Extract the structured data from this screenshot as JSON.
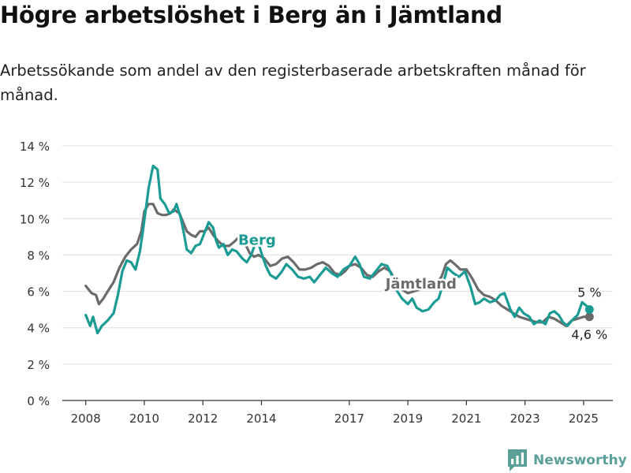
{
  "title": "Högre arbetslöshet i Berg än i Jämtland",
  "subtitle": "Arbetssökande som andel av den registerbaserade arbetskraften månad för månad.",
  "brand": {
    "name": "Newsworthy",
    "icon": "newsworthy-logo-icon"
  },
  "colors": {
    "berg": "#1a9b93",
    "jamtland": "#6b6b6b",
    "grid": "#dddddd",
    "axis": "#333333"
  },
  "chart_data": {
    "type": "line",
    "y_ticks": [
      "0 %",
      "2 %",
      "4 %",
      "6 %",
      "8 %",
      "10 %",
      "12 %",
      "14 %"
    ],
    "x_ticks": [
      "2008",
      "2010",
      "2012",
      "2014",
      "2017",
      "2019",
      "2021",
      "2023",
      "2025"
    ],
    "x_tick_values": [
      2008,
      2010,
      2012,
      2014,
      2017,
      2019,
      2021,
      2023,
      2025
    ],
    "xlim": [
      2007.2,
      2026.0
    ],
    "ylim": [
      0,
      14
    ],
    "grid": true,
    "series": [
      {
        "name": "Jämtland",
        "color": "#6b6b6b",
        "end_label": "4,6 %",
        "points": [
          [
            2008.0,
            6.3
          ],
          [
            2008.2,
            5.9
          ],
          [
            2008.35,
            5.8
          ],
          [
            2008.45,
            5.3
          ],
          [
            2008.6,
            5.6
          ],
          [
            2008.75,
            6.0
          ],
          [
            2008.95,
            6.5
          ],
          [
            2009.15,
            7.3
          ],
          [
            2009.35,
            7.9
          ],
          [
            2009.55,
            8.3
          ],
          [
            2009.75,
            8.6
          ],
          [
            2009.9,
            9.3
          ],
          [
            2010.0,
            10.4
          ],
          [
            2010.15,
            10.8
          ],
          [
            2010.3,
            10.8
          ],
          [
            2010.45,
            10.3
          ],
          [
            2010.6,
            10.2
          ],
          [
            2010.75,
            10.2
          ],
          [
            2010.9,
            10.3
          ],
          [
            2011.0,
            10.5
          ],
          [
            2011.2,
            10.3
          ],
          [
            2011.35,
            9.7
          ],
          [
            2011.45,
            9.3
          ],
          [
            2011.6,
            9.1
          ],
          [
            2011.75,
            9.0
          ],
          [
            2011.9,
            9.3
          ],
          [
            2012.05,
            9.3
          ],
          [
            2012.2,
            9.5
          ],
          [
            2012.35,
            9.1
          ],
          [
            2012.5,
            8.8
          ],
          [
            2012.7,
            8.5
          ],
          [
            2012.9,
            8.5
          ],
          [
            2013.05,
            8.7
          ],
          [
            2013.25,
            9.0
          ],
          [
            2013.45,
            8.6
          ],
          [
            2013.6,
            8.1
          ],
          [
            2013.75,
            7.9
          ],
          [
            2013.9,
            8.0
          ],
          [
            2014.1,
            7.8
          ],
          [
            2014.3,
            7.4
          ],
          [
            2014.5,
            7.5
          ],
          [
            2014.7,
            7.8
          ],
          [
            2014.9,
            7.9
          ],
          [
            2015.1,
            7.6
          ],
          [
            2015.3,
            7.2
          ],
          [
            2015.5,
            7.2
          ],
          [
            2015.7,
            7.3
          ],
          [
            2015.9,
            7.5
          ],
          [
            2016.1,
            7.6
          ],
          [
            2016.3,
            7.4
          ],
          [
            2016.5,
            7.0
          ],
          [
            2016.7,
            6.9
          ],
          [
            2016.85,
            7.1
          ],
          [
            2017.0,
            7.4
          ],
          [
            2017.2,
            7.5
          ],
          [
            2017.4,
            7.3
          ],
          [
            2017.6,
            6.9
          ],
          [
            2017.8,
            6.8
          ],
          [
            2018.0,
            7.1
          ],
          [
            2018.2,
            7.3
          ],
          [
            2018.4,
            7.1
          ],
          [
            2018.6,
            6.5
          ],
          [
            2018.8,
            6.1
          ],
          [
            2019.0,
            5.9
          ],
          [
            2019.2,
            6.0
          ],
          [
            2019.4,
            6.1
          ],
          [
            2019.6,
            6.2
          ],
          [
            2019.8,
            6.3
          ],
          [
            2020.0,
            6.5
          ],
          [
            2020.15,
            6.8
          ],
          [
            2020.3,
            7.5
          ],
          [
            2020.45,
            7.7
          ],
          [
            2020.6,
            7.5
          ],
          [
            2020.8,
            7.2
          ],
          [
            2021.0,
            7.2
          ],
          [
            2021.2,
            6.7
          ],
          [
            2021.4,
            6.1
          ],
          [
            2021.6,
            5.8
          ],
          [
            2021.8,
            5.7
          ],
          [
            2022.0,
            5.5
          ],
          [
            2022.2,
            5.2
          ],
          [
            2022.4,
            5.0
          ],
          [
            2022.6,
            4.8
          ],
          [
            2022.8,
            4.6
          ],
          [
            2023.0,
            4.5
          ],
          [
            2023.2,
            4.4
          ],
          [
            2023.4,
            4.3
          ],
          [
            2023.6,
            4.3
          ],
          [
            2023.8,
            4.6
          ],
          [
            2024.0,
            4.5
          ],
          [
            2024.2,
            4.3
          ],
          [
            2024.4,
            4.1
          ],
          [
            2024.6,
            4.4
          ],
          [
            2024.8,
            4.5
          ],
          [
            2025.0,
            4.6
          ],
          [
            2025.2,
            4.6
          ]
        ]
      },
      {
        "name": "Berg",
        "color": "#1a9b93",
        "end_label": "5 %",
        "points": [
          [
            2008.0,
            4.7
          ],
          [
            2008.15,
            4.1
          ],
          [
            2008.25,
            4.6
          ],
          [
            2008.4,
            3.7
          ],
          [
            2008.55,
            4.1
          ],
          [
            2008.75,
            4.4
          ],
          [
            2008.95,
            4.8
          ],
          [
            2009.1,
            5.8
          ],
          [
            2009.25,
            7.1
          ],
          [
            2009.4,
            7.7
          ],
          [
            2009.55,
            7.6
          ],
          [
            2009.7,
            7.2
          ],
          [
            2009.85,
            8.2
          ],
          [
            2009.95,
            9.3
          ],
          [
            2010.05,
            10.5
          ],
          [
            2010.15,
            11.7
          ],
          [
            2010.3,
            12.9
          ],
          [
            2010.45,
            12.7
          ],
          [
            2010.55,
            11.1
          ],
          [
            2010.7,
            10.8
          ],
          [
            2010.85,
            10.3
          ],
          [
            2011.0,
            10.4
          ],
          [
            2011.1,
            10.8
          ],
          [
            2011.25,
            10.0
          ],
          [
            2011.35,
            9.2
          ],
          [
            2011.45,
            8.3
          ],
          [
            2011.6,
            8.1
          ],
          [
            2011.75,
            8.5
          ],
          [
            2011.9,
            8.6
          ],
          [
            2012.05,
            9.2
          ],
          [
            2012.2,
            9.8
          ],
          [
            2012.35,
            9.5
          ],
          [
            2012.45,
            8.8
          ],
          [
            2012.55,
            8.4
          ],
          [
            2012.7,
            8.6
          ],
          [
            2012.85,
            8.0
          ],
          [
            2013.0,
            8.3
          ],
          [
            2013.15,
            8.2
          ],
          [
            2013.35,
            7.8
          ],
          [
            2013.5,
            7.6
          ],
          [
            2013.65,
            8.0
          ],
          [
            2013.85,
            8.9
          ],
          [
            2014.0,
            8.1
          ],
          [
            2014.15,
            7.4
          ],
          [
            2014.3,
            6.9
          ],
          [
            2014.5,
            6.7
          ],
          [
            2014.7,
            7.1
          ],
          [
            2014.85,
            7.5
          ],
          [
            2015.05,
            7.2
          ],
          [
            2015.25,
            6.8
          ],
          [
            2015.45,
            6.7
          ],
          [
            2015.65,
            6.8
          ],
          [
            2015.8,
            6.5
          ],
          [
            2016.0,
            6.9
          ],
          [
            2016.2,
            7.3
          ],
          [
            2016.4,
            7.0
          ],
          [
            2016.6,
            6.8
          ],
          [
            2016.8,
            7.2
          ],
          [
            2017.0,
            7.4
          ],
          [
            2017.2,
            7.9
          ],
          [
            2017.35,
            7.5
          ],
          [
            2017.5,
            6.8
          ],
          [
            2017.7,
            6.7
          ],
          [
            2017.9,
            7.1
          ],
          [
            2018.1,
            7.5
          ],
          [
            2018.3,
            7.4
          ],
          [
            2018.45,
            6.9
          ],
          [
            2018.6,
            6.1
          ],
          [
            2018.8,
            5.6
          ],
          [
            2019.0,
            5.3
          ],
          [
            2019.15,
            5.6
          ],
          [
            2019.3,
            5.1
          ],
          [
            2019.5,
            4.9
          ],
          [
            2019.7,
            5.0
          ],
          [
            2019.9,
            5.4
          ],
          [
            2020.05,
            5.6
          ],
          [
            2020.2,
            6.4
          ],
          [
            2020.35,
            7.3
          ],
          [
            2020.55,
            7.0
          ],
          [
            2020.75,
            6.8
          ],
          [
            2020.95,
            7.1
          ],
          [
            2021.15,
            6.2
          ],
          [
            2021.3,
            5.3
          ],
          [
            2021.45,
            5.4
          ],
          [
            2021.6,
            5.6
          ],
          [
            2021.8,
            5.4
          ],
          [
            2022.0,
            5.5
          ],
          [
            2022.15,
            5.8
          ],
          [
            2022.3,
            5.9
          ],
          [
            2022.5,
            5.0
          ],
          [
            2022.65,
            4.6
          ],
          [
            2022.8,
            5.1
          ],
          [
            2022.95,
            4.8
          ],
          [
            2023.15,
            4.6
          ],
          [
            2023.3,
            4.2
          ],
          [
            2023.5,
            4.4
          ],
          [
            2023.7,
            4.2
          ],
          [
            2023.85,
            4.8
          ],
          [
            2024.0,
            4.9
          ],
          [
            2024.15,
            4.7
          ],
          [
            2024.3,
            4.3
          ],
          [
            2024.45,
            4.1
          ],
          [
            2024.6,
            4.4
          ],
          [
            2024.8,
            4.7
          ],
          [
            2024.95,
            5.4
          ],
          [
            2025.1,
            5.2
          ],
          [
            2025.2,
            5.0
          ]
        ]
      }
    ],
    "annotations": [
      {
        "text": "Berg",
        "series": "Berg",
        "x": 2013.85,
        "y": 8.55
      },
      {
        "text": "Jämtland",
        "series": "Jämtland",
        "x": 2019.45,
        "y": 6.15
      }
    ]
  }
}
